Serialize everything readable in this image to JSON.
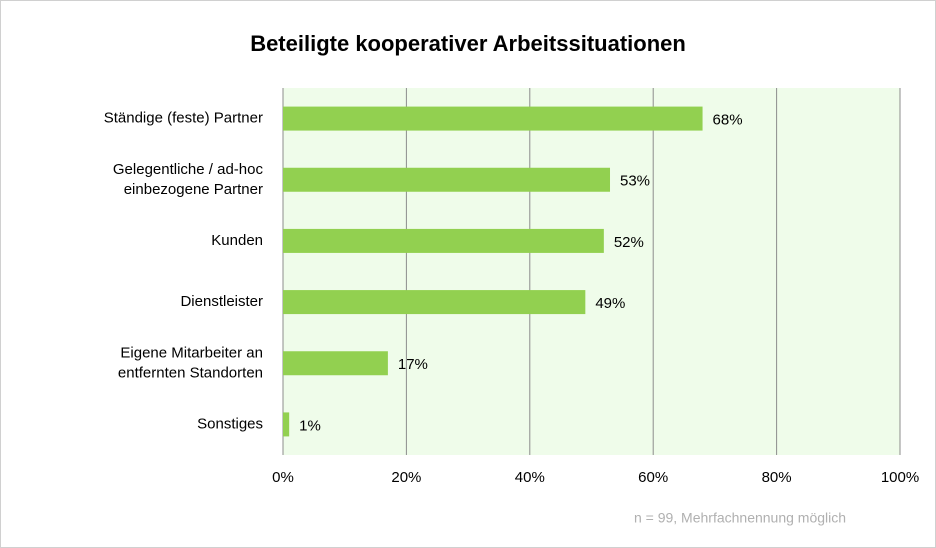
{
  "chart_data": {
    "type": "barh",
    "title": "Beteiligte kooperativer Arbeitssituationen",
    "categories": [
      "Ständige (feste) Partner",
      "Gelegentliche / ad-hoc\neinbezogene Partner",
      "Kunden",
      "Dienstleister",
      "Eigene Mitarbeiter an\nentfernten Standorten",
      "Sonstiges"
    ],
    "values": [
      68,
      53,
      52,
      49,
      17,
      1
    ],
    "value_labels": [
      "68%",
      "53%",
      "52%",
      "49%",
      "17%",
      "1%"
    ],
    "color": "#92d050",
    "xlim": [
      0,
      100
    ],
    "xticks": [
      {
        "value": 0,
        "label": "0%"
      },
      {
        "value": 20,
        "label": "20%"
      },
      {
        "value": 40,
        "label": "40%"
      },
      {
        "value": 60,
        "label": "60%"
      },
      {
        "value": 80,
        "label": "80%"
      },
      {
        "value": 100,
        "label": "100%"
      }
    ],
    "grid": true,
    "note": "n = 99, Mehrfachnennung möglich"
  }
}
